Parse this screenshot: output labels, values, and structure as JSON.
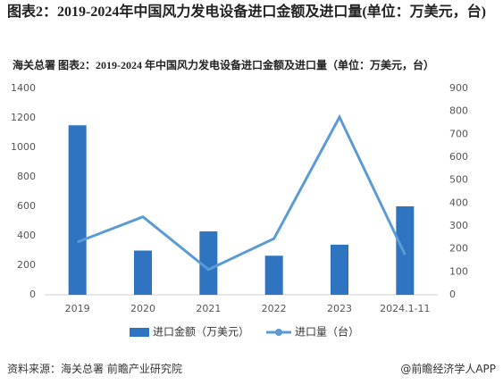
{
  "chart_data": {
    "type": "bar-line",
    "title": "图表2：2019-2024年中国风力发电设备进口金额及进口量(单位：万美元，台)",
    "subtitle": "海关总署  图表2：2019-2024 年中国风力发电设备进口金额及进口量（单位：万美元，台）",
    "categories": [
      "2019",
      "2020",
      "2021",
      "2022",
      "2023",
      "2024.1-11"
    ],
    "series": [
      {
        "name": "进口金额（万美元）",
        "type": "bar",
        "color": "#2f74c0",
        "values": [
          1150,
          300,
          430,
          265,
          340,
          600
        ]
      },
      {
        "name": "进口量（台）",
        "type": "line",
        "axis": "y2",
        "color": "#5b9bd5",
        "values": [
          230,
          340,
          110,
          245,
          775,
          175
        ]
      }
    ],
    "ylim": [
      0,
      1400
    ],
    "yticks": [
      0,
      200,
      400,
      600,
      800,
      1000,
      1200,
      1400
    ],
    "y2lim": [
      0,
      900
    ],
    "y2ticks": [
      0,
      100,
      200,
      300,
      400,
      500,
      600,
      700,
      800,
      900
    ],
    "source": "资料来源：海关总署 前瞻产业研究院",
    "credit": "@前瞻经济学人APP"
  }
}
